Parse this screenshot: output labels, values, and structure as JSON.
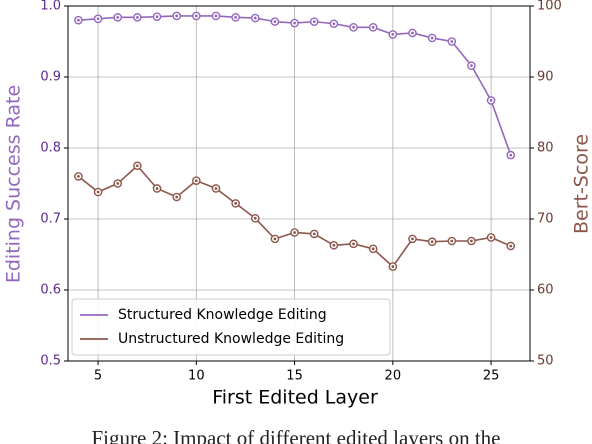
{
  "chart_data": {
    "type": "line",
    "x_label": "First Edited Layer",
    "y_label": "Editing Success Rate",
    "y2_label": "Bert-Score",
    "caption": "Figure 2: Impact of different edited layers on the",
    "x": [
      4,
      5,
      6,
      7,
      8,
      9,
      10,
      11,
      12,
      13,
      14,
      15,
      16,
      17,
      18,
      19,
      20,
      21,
      22,
      23,
      24,
      25,
      26
    ],
    "xlim": [
      3.47,
      26.98
    ],
    "xticks": [
      5,
      10,
      15,
      20,
      25
    ],
    "ylim": [
      0.5,
      1.0
    ],
    "yticks": [
      0.5,
      0.6,
      0.7,
      0.8,
      0.9,
      {
        "value": 1.0,
        "label": "1.0"
      }
    ],
    "y2lim": [
      50,
      100
    ],
    "y2ticks": [
      50,
      60,
      70,
      80,
      90,
      100
    ],
    "grid": true,
    "legend": "lower left",
    "series": [
      {
        "name": "Structured Knowledge Editing",
        "color": "#9467bd",
        "axis": "y",
        "values": [
          0.98,
          0.982,
          0.984,
          0.984,
          0.985,
          0.986,
          0.986,
          0.986,
          0.984,
          0.983,
          0.978,
          0.976,
          0.978,
          0.975,
          0.97,
          0.97,
          0.96,
          0.962,
          0.955,
          0.95,
          0.916,
          0.867,
          0.79
        ]
      },
      {
        "name": "Unstructured Knowledge Editing",
        "color": "#8c564b",
        "axis": "y2",
        "values": [
          76.0,
          73.8,
          75.0,
          77.5,
          74.3,
          73.1,
          75.4,
          74.3,
          72.2,
          70.1,
          67.2,
          68.1,
          67.9,
          66.3,
          66.5,
          65.8,
          63.3,
          67.2,
          66.8,
          66.9,
          66.9,
          67.4,
          66.2
        ]
      }
    ]
  }
}
